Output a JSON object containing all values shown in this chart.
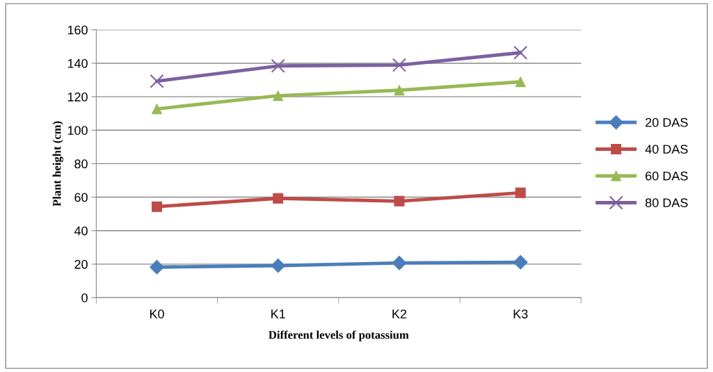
{
  "chart_data": {
    "type": "line",
    "xlabel": "Different levels of potassium",
    "ylabel": "Plant height (cm)",
    "categories": [
      "K0",
      "K1",
      "K2",
      "K3"
    ],
    "series": [
      {
        "name": "20 DAS",
        "color": "#4a7ebb",
        "marker": "diamond",
        "values": [
          18.2,
          19.1,
          20.7,
          21.1
        ]
      },
      {
        "name": "40 DAS",
        "color": "#be4b48",
        "marker": "square",
        "values": [
          54.3,
          59.3,
          57.6,
          62.6
        ]
      },
      {
        "name": "60 DAS",
        "color": "#98b954",
        "marker": "triangle",
        "values": [
          112.7,
          120.6,
          123.9,
          128.9
        ]
      },
      {
        "name": "80 DAS",
        "color": "#7d60a0",
        "marker": "cross",
        "values": [
          129.3,
          138.4,
          138.9,
          146.3
        ]
      }
    ],
    "ylim": [
      0,
      160
    ],
    "yticks": [
      0,
      20,
      40,
      60,
      80,
      100,
      120,
      140,
      160
    ],
    "grid": "y",
    "legend": "right",
    "line_style": "solid"
  }
}
